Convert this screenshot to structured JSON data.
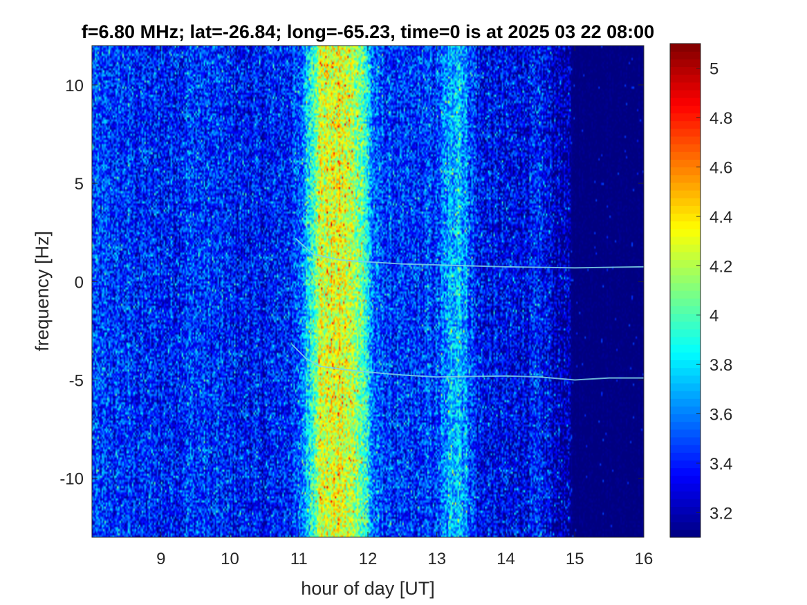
{
  "chart_data": {
    "type": "heatmap",
    "title": "f=6.80 MHz;  lat=-26.84; long=-65.23, time=0 is at 2025 03 22 08:00",
    "xlabel": "hour of day [UT]",
    "ylabel": "frequency [Hz]",
    "xlim": [
      8,
      16
    ],
    "ylim": [
      -13,
      12
    ],
    "x_ticks": [
      9,
      10,
      11,
      12,
      13,
      14,
      15,
      16
    ],
    "y_ticks": [
      -10,
      -5,
      0,
      5,
      10
    ],
    "x_tick_labels": [
      "9",
      "10",
      "11",
      "12",
      "13",
      "14",
      "15",
      "16"
    ],
    "y_tick_labels": [
      "-10",
      "-5",
      "0",
      "5",
      "10"
    ],
    "colormap": "jet",
    "clim": [
      3.1,
      5.1
    ],
    "colorbar_ticks": [
      3.2,
      3.4,
      3.6,
      3.8,
      4,
      4.2,
      4.4,
      4.6,
      4.8,
      5
    ],
    "colorbar_tick_labels": [
      "3.2",
      "3.4",
      "3.6",
      "3.8",
      "4",
      "4.2",
      "4.4",
      "4.6",
      "4.8",
      "5"
    ],
    "grid": false,
    "intensity_profile_vs_hour": [
      [
        8.0,
        3.45
      ],
      [
        8.5,
        3.42
      ],
      [
        9.0,
        3.38
      ],
      [
        9.5,
        3.45
      ],
      [
        10.0,
        3.38
      ],
      [
        10.5,
        3.35
      ],
      [
        11.0,
        3.45
      ],
      [
        11.3,
        4.25
      ],
      [
        11.6,
        4.3
      ],
      [
        11.9,
        4.1
      ],
      [
        12.1,
        3.5
      ],
      [
        12.5,
        3.4
      ],
      [
        13.0,
        3.45
      ],
      [
        13.3,
        3.8
      ],
      [
        13.6,
        3.35
      ],
      [
        14.0,
        3.3
      ],
      [
        14.5,
        3.35
      ],
      [
        14.8,
        3.2
      ],
      [
        15.0,
        3.1
      ],
      [
        16.0,
        3.1
      ]
    ],
    "traces": [
      {
        "points": [
          [
            10.95,
            2.2
          ],
          [
            11.2,
            1.4
          ],
          [
            11.6,
            1.1
          ],
          [
            12.0,
            1.0
          ],
          [
            12.5,
            0.9
          ],
          [
            13.0,
            0.85
          ],
          [
            14.0,
            0.75
          ],
          [
            15.0,
            0.7
          ],
          [
            16.0,
            0.75
          ]
        ]
      },
      {
        "points": [
          [
            10.9,
            -3.2
          ],
          [
            11.1,
            -3.9
          ],
          [
            11.3,
            -4.3
          ],
          [
            11.6,
            -4.45
          ],
          [
            12.0,
            -4.6
          ],
          [
            12.5,
            -4.75
          ],
          [
            13.0,
            -4.85
          ],
          [
            14.0,
            -4.8
          ],
          [
            14.5,
            -4.85
          ],
          [
            15.0,
            -5.0
          ],
          [
            15.5,
            -4.9
          ],
          [
            16.0,
            -4.9
          ]
        ]
      }
    ]
  }
}
